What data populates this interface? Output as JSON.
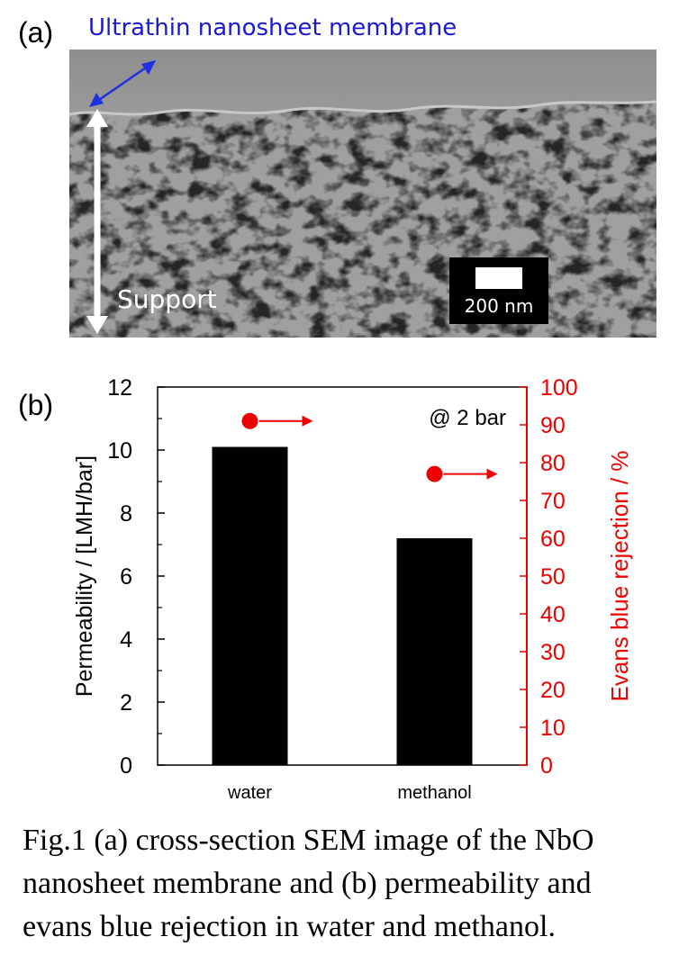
{
  "panel_a": {
    "label": "(a)",
    "membrane_label": "Ultrathin nanosheet membrane",
    "support_label": "Support",
    "scale_bar_label": "200 nm",
    "colors": {
      "membrane_label": "#1a1ad4",
      "arrow": "#2030e0"
    }
  },
  "panel_b": {
    "label": "(b)"
  },
  "chart_data": {
    "type": "bar",
    "categories": [
      "water",
      "methanol"
    ],
    "series": [
      {
        "values": [
          10.1,
          7.2
        ],
        "axis": "left",
        "color": "#000000"
      },
      {
        "type": "scatter",
        "values": [
          91,
          77
        ],
        "axis": "right",
        "color": "#ee0000"
      }
    ],
    "ylabel": "Permeability / [LMH/bar]",
    "y2label": "Evans blue rejection  / %",
    "ylim": [
      0,
      12
    ],
    "y2lim": [
      0,
      100
    ],
    "yticks": [
      "0",
      "2",
      "4",
      "6",
      "8",
      "10",
      "12"
    ],
    "y2ticks": [
      "0",
      "10",
      "20",
      "30",
      "40",
      "50",
      "60",
      "70",
      "80",
      "90",
      "100"
    ],
    "annotation": "@ 2 bar",
    "colors": {
      "right_axis": "#ee0000",
      "bars": "#000000"
    }
  },
  "caption": {
    "lines": [
      "Fig.1 (a) cross-section SEM image of the NbO",
      "nanosheet membrane and (b) permeability and",
      "evans blue rejection in water and methanol."
    ]
  }
}
